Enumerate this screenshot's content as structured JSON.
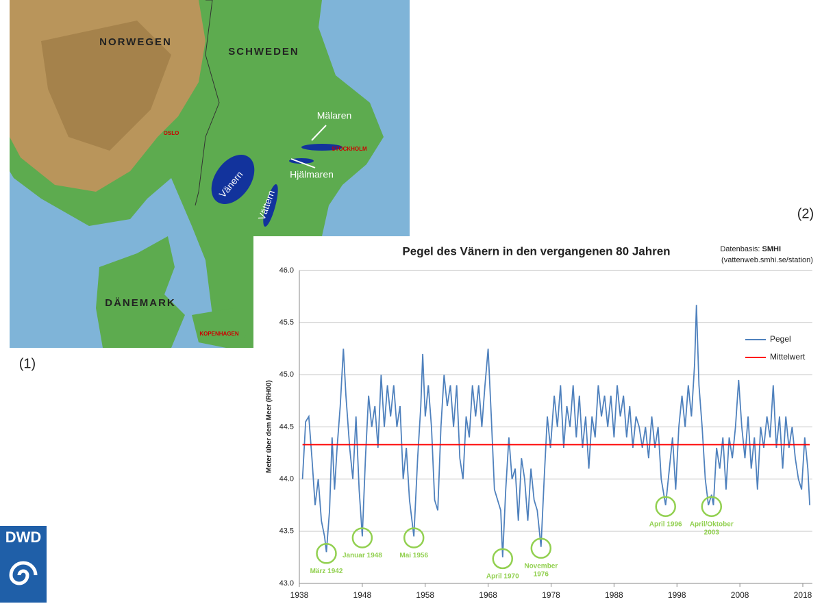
{
  "map": {
    "labels": [
      "NORWEGEN",
      "SCHWEDEN",
      "DÄNEMARK",
      "Mälaren",
      "Hjälmaren",
      "Vänern",
      "Vättern",
      "OSLO",
      "STOCKHOLM",
      "KOPENHAGEN"
    ]
  },
  "panel_labels": [
    "(1)",
    "(2)"
  ],
  "logo": "DWD",
  "chart_data": {
    "type": "line",
    "title": "Pegel des Vänern in den vergangenen 80 Jahren",
    "source": [
      "Datenbasis:",
      "SMHI",
      "(vattenweb.smhi.se/station)"
    ],
    "y_label": "Meter über dem Meer (RH00)",
    "xlim": [
      1938,
      2019.5
    ],
    "xticks": [
      1938,
      1948,
      1958,
      1968,
      1978,
      1988,
      1998,
      2008,
      2018
    ],
    "ylim": [
      43,
      46
    ],
    "yticks": [
      {
        "value": 43,
        "label": "43.0"
      },
      {
        "value": 43.5,
        "label": "43.5"
      },
      {
        "value": 44,
        "label": "44.0"
      },
      {
        "value": 44.5,
        "label": "44.5"
      },
      {
        "value": 45,
        "label": "45.0"
      },
      {
        "value": 45.5,
        "label": "45.5"
      },
      {
        "value": 46,
        "label": "46.0"
      }
    ],
    "grid": true,
    "legend": "right",
    "series": [
      {
        "name": "Pegel",
        "color": "#4f81bd",
        "x": [
          1938.5,
          1939.0,
          1939.5,
          1940.0,
          1940.5,
          1941.0,
          1941.5,
          1942.0,
          1942.3,
          1942.8,
          1943.2,
          1943.6,
          1944.0,
          1944.5,
          1945.0,
          1945.4,
          1946.0,
          1946.5,
          1947.0,
          1947.5,
          1948.0,
          1948.5,
          1949.0,
          1949.5,
          1950.0,
          1950.5,
          1951.0,
          1951.5,
          1952.0,
          1952.5,
          1953.0,
          1953.5,
          1954.0,
          1954.5,
          1955.0,
          1955.5,
          1956.2,
          1956.8,
          1957.3,
          1957.6,
          1958.0,
          1958.5,
          1959.0,
          1959.5,
          1960.0,
          1960.5,
          1961.0,
          1961.5,
          1962.0,
          1962.5,
          1963.0,
          1963.5,
          1964.0,
          1964.5,
          1965.0,
          1965.5,
          1966.0,
          1966.5,
          1967.0,
          1967.5,
          1968.0,
          1968.5,
          1969.0,
          1969.5,
          1970.0,
          1970.3,
          1970.8,
          1971.3,
          1971.8,
          1972.3,
          1972.8,
          1973.3,
          1973.8,
          1974.3,
          1974.8,
          1975.3,
          1975.8,
          1976.4,
          1976.9,
          1977.4,
          1977.9,
          1978.5,
          1979.0,
          1979.5,
          1980.0,
          1980.5,
          1981.0,
          1981.5,
          1982.0,
          1982.5,
          1983.0,
          1983.5,
          1984.0,
          1984.5,
          1985.0,
          1985.5,
          1986.0,
          1986.5,
          1987.0,
          1987.5,
          1988.0,
          1988.5,
          1989.0,
          1989.5,
          1990.0,
          1990.5,
          1991.0,
          1991.5,
          1992.0,
          1992.5,
          1993.0,
          1993.5,
          1994.0,
          1994.5,
          1995.0,
          1995.5,
          1996.2,
          1996.8,
          1997.3,
          1997.8,
          1998.3,
          1998.8,
          1999.3,
          1999.8,
          2000.3,
          2000.8,
          2001.1,
          2001.5,
          2002.0,
          2002.5,
          2003.0,
          2003.5,
          2003.8,
          2004.3,
          2004.8,
          2005.3,
          2005.8,
          2006.3,
          2006.8,
          2007.3,
          2007.8,
          2008.3,
          2008.8,
          2009.3,
          2009.8,
          2010.3,
          2010.8,
          2011.3,
          2011.8,
          2012.3,
          2012.8,
          2013.3,
          2013.8,
          2014.3,
          2014.8,
          2015.3,
          2015.8,
          2016.3,
          2016.8,
          2017.3,
          2017.8,
          2018.3,
          2018.8,
          2019.1
        ],
        "values": [
          44.0,
          44.55,
          44.6,
          44.2,
          43.75,
          44.0,
          43.6,
          43.45,
          43.3,
          43.7,
          44.4,
          43.9,
          44.3,
          44.7,
          45.25,
          44.8,
          44.3,
          44.0,
          44.6,
          43.9,
          43.45,
          44.2,
          44.8,
          44.5,
          44.7,
          44.3,
          45.0,
          44.5,
          44.9,
          44.6,
          44.9,
          44.5,
          44.7,
          44.0,
          44.3,
          43.8,
          43.45,
          44.2,
          44.7,
          45.2,
          44.6,
          44.9,
          44.5,
          43.8,
          43.7,
          44.5,
          45.0,
          44.7,
          44.9,
          44.5,
          44.9,
          44.2,
          44.0,
          44.6,
          44.4,
          44.9,
          44.6,
          44.9,
          44.5,
          44.9,
          45.25,
          44.6,
          43.9,
          43.8,
          43.7,
          43.25,
          43.9,
          44.4,
          44.0,
          44.1,
          43.6,
          44.2,
          44.0,
          43.6,
          44.1,
          43.8,
          43.7,
          43.35,
          44.0,
          44.6,
          44.3,
          44.8,
          44.5,
          44.9,
          44.3,
          44.7,
          44.5,
          44.9,
          44.4,
          44.8,
          44.3,
          44.6,
          44.1,
          44.6,
          44.4,
          44.9,
          44.6,
          44.8,
          44.5,
          44.8,
          44.4,
          44.9,
          44.6,
          44.8,
          44.4,
          44.7,
          44.3,
          44.6,
          44.5,
          44.3,
          44.5,
          44.2,
          44.6,
          44.3,
          44.5,
          44.0,
          43.75,
          44.1,
          44.4,
          43.9,
          44.5,
          44.8,
          44.5,
          44.9,
          44.6,
          45.1,
          45.67,
          44.9,
          44.5,
          44.0,
          43.75,
          43.85,
          43.75,
          44.3,
          44.1,
          44.4,
          43.9,
          44.4,
          44.2,
          44.5,
          44.95,
          44.5,
          44.2,
          44.6,
          44.1,
          44.4,
          43.9,
          44.5,
          44.3,
          44.6,
          44.4,
          44.9,
          44.3,
          44.6,
          44.1,
          44.6,
          44.3,
          44.5,
          44.2,
          44.0,
          43.9,
          44.4,
          44.1,
          43.75
        ]
      },
      {
        "name": "Mittelwert",
        "color": "#ff0000",
        "x": [
          1938.5,
          2019.1
        ],
        "values": [
          44.33,
          44.33
        ]
      }
    ],
    "annotation_color": "#92d050",
    "annotations": [
      {
        "lines": [
          "März 1942"
        ],
        "x": 1942.3,
        "y": 43.3
      },
      {
        "lines": [
          "Januar 1948"
        ],
        "x": 1948.0,
        "y": 43.45
      },
      {
        "lines": [
          "Mai 1956"
        ],
        "x": 1956.2,
        "y": 43.45
      },
      {
        "lines": [
          "April 1970"
        ],
        "x": 1970.3,
        "y": 43.25
      },
      {
        "lines": [
          "November",
          "1976"
        ],
        "x": 1976.4,
        "y": 43.35
      },
      {
        "lines": [
          "April 1996"
        ],
        "x": 1996.2,
        "y": 43.75
      },
      {
        "lines": [
          "April/Oktober",
          "2003"
        ],
        "x": 2003.5,
        "y": 43.75
      }
    ]
  }
}
